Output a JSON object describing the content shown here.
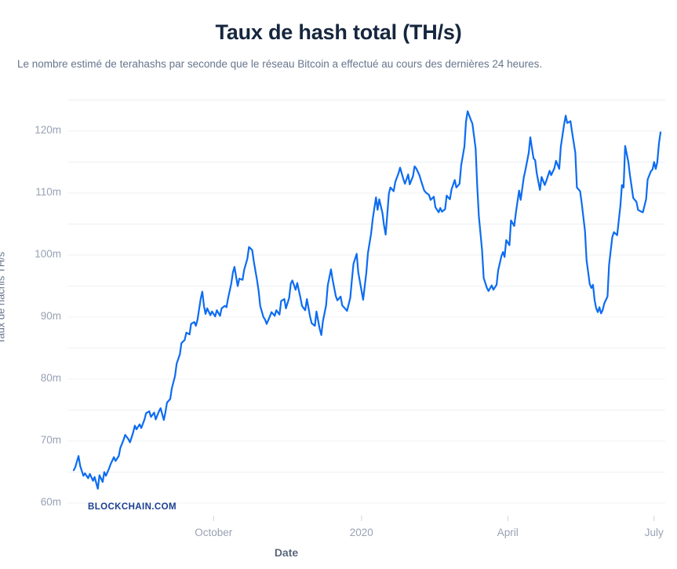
{
  "page": {
    "title": "Taux de hash total (TH/s)",
    "subtitle": "Le nombre estimé de terahashs par seconde que le réseau Bitcoin a effectué au cours des dernières 24 heures."
  },
  "watermark": "BLOCKCHAIN.COM",
  "colors": {
    "background": "#FFFFFF",
    "title": "#16263E",
    "subtitle": "#67758C",
    "line": "#0C6CF2",
    "grid": "#EDF0F3",
    "tick_label": "#98A2B3",
    "axis_title": "#67758C",
    "tick_mark": "#CFD5DD",
    "watermark": "#1B3E91"
  },
  "chart_data": {
    "type": "line",
    "title": "Taux de hash total (TH/s)",
    "xlabel": "Date",
    "ylabel": "Taux de hachis TH/s",
    "y_tick_suffix": "m",
    "grid": "horizontal",
    "legend": "none",
    "x_range": {
      "start_date": "2019-07-06",
      "end_date": "2020-07-06",
      "days": 365
    },
    "x_ticks": [
      {
        "label": "October",
        "day": 87
      },
      {
        "label": "2020",
        "day": 179
      },
      {
        "label": "April",
        "day": 270
      },
      {
        "label": "July",
        "day": 361
      }
    ],
    "y_ticks": [
      {
        "value": 60,
        "label": "60m"
      },
      {
        "value": 70,
        "label": "70m"
      },
      {
        "value": 80,
        "label": "80m"
      },
      {
        "value": 90,
        "label": "90m"
      },
      {
        "value": 100,
        "label": "100m"
      },
      {
        "value": 110,
        "label": "110m"
      },
      {
        "value": 120,
        "label": "120m"
      }
    ],
    "y_grid": {
      "min": 60,
      "max": 125,
      "step": 5
    },
    "ylim": [
      60,
      125
    ],
    "series": [
      {
        "name": "Taux de hash total (TH/s)",
        "color": "#0C6CF2",
        "x_unit": "days_since_start",
        "y_unit": "millions_of_TH_per_s",
        "points": [
          [
            0,
            65.3
          ],
          [
            1,
            65.8
          ],
          [
            3,
            67.6
          ],
          [
            4,
            66.0
          ],
          [
            6,
            64.4
          ],
          [
            7,
            64.8
          ],
          [
            9,
            64.0
          ],
          [
            10,
            64.7
          ],
          [
            12,
            63.6
          ],
          [
            13,
            64.2
          ],
          [
            15,
            62.3
          ],
          [
            16,
            64.5
          ],
          [
            18,
            63.4
          ],
          [
            19,
            65.0
          ],
          [
            20,
            64.4
          ],
          [
            22,
            65.6
          ],
          [
            23,
            66.3
          ],
          [
            25,
            67.4
          ],
          [
            26,
            66.8
          ],
          [
            28,
            67.6
          ],
          [
            29,
            68.9
          ],
          [
            31,
            70.2
          ],
          [
            32,
            71.0
          ],
          [
            34,
            70.3
          ],
          [
            35,
            69.8
          ],
          [
            37,
            71.4
          ],
          [
            38,
            72.5
          ],
          [
            39,
            71.9
          ],
          [
            41,
            72.7
          ],
          [
            42,
            72.1
          ],
          [
            44,
            73.5
          ],
          [
            45,
            74.5
          ],
          [
            47,
            74.8
          ],
          [
            48,
            73.9
          ],
          [
            50,
            74.6
          ],
          [
            51,
            73.5
          ],
          [
            53,
            74.8
          ],
          [
            54,
            75.3
          ],
          [
            56,
            73.4
          ],
          [
            57,
            74.6
          ],
          [
            58,
            76.2
          ],
          [
            60,
            76.8
          ],
          [
            61,
            78.5
          ],
          [
            63,
            80.5
          ],
          [
            64,
            82.5
          ],
          [
            66,
            84.0
          ],
          [
            67,
            85.8
          ],
          [
            69,
            86.3
          ],
          [
            70,
            87.5
          ],
          [
            72,
            87.2
          ],
          [
            73,
            88.9
          ],
          [
            75,
            89.2
          ],
          [
            76,
            88.6
          ],
          [
            77,
            89.6
          ],
          [
            79,
            93.0
          ],
          [
            80,
            94.1
          ],
          [
            81,
            91.8
          ],
          [
            82,
            90.5
          ],
          [
            83,
            91.4
          ],
          [
            85,
            90.3
          ],
          [
            86,
            90.9
          ],
          [
            88,
            90.1
          ],
          [
            89,
            91.1
          ],
          [
            91,
            90.2
          ],
          [
            92,
            91.4
          ],
          [
            94,
            91.8
          ],
          [
            95,
            91.6
          ],
          [
            96,
            93.0
          ],
          [
            98,
            95.4
          ],
          [
            99,
            97.2
          ],
          [
            100,
            98.1
          ],
          [
            102,
            95.0
          ],
          [
            103,
            96.2
          ],
          [
            105,
            96.0
          ],
          [
            106,
            97.6
          ],
          [
            108,
            99.4
          ],
          [
            109,
            101.3
          ],
          [
            111,
            100.8
          ],
          [
            112,
            99.0
          ],
          [
            114,
            96.0
          ],
          [
            115,
            94.2
          ],
          [
            116,
            91.8
          ],
          [
            118,
            90.0
          ],
          [
            119,
            89.6
          ],
          [
            120,
            88.9
          ],
          [
            122,
            90.1
          ],
          [
            123,
            90.8
          ],
          [
            125,
            90.2
          ],
          [
            126,
            91.1
          ],
          [
            128,
            90.4
          ],
          [
            129,
            92.6
          ],
          [
            131,
            92.9
          ],
          [
            132,
            91.4
          ],
          [
            134,
            93.1
          ],
          [
            135,
            95.4
          ],
          [
            136,
            95.9
          ],
          [
            138,
            94.4
          ],
          [
            139,
            95.5
          ],
          [
            141,
            93.1
          ],
          [
            142,
            91.8
          ],
          [
            144,
            91.1
          ],
          [
            145,
            92.9
          ],
          [
            147,
            90.1
          ],
          [
            148,
            89.0
          ],
          [
            150,
            88.6
          ],
          [
            151,
            90.9
          ],
          [
            153,
            88.1
          ],
          [
            154,
            87.1
          ],
          [
            155,
            89.3
          ],
          [
            157,
            91.9
          ],
          [
            158,
            95.1
          ],
          [
            160,
            97.7
          ],
          [
            161,
            96.1
          ],
          [
            163,
            93.4
          ],
          [
            164,
            92.7
          ],
          [
            166,
            93.3
          ],
          [
            167,
            91.9
          ],
          [
            169,
            91.3
          ],
          [
            170,
            91.0
          ],
          [
            172,
            93.1
          ],
          [
            173,
            95.9
          ],
          [
            174,
            98.6
          ],
          [
            176,
            100.2
          ],
          [
            177,
            97.2
          ],
          [
            179,
            94.3
          ],
          [
            180,
            92.8
          ],
          [
            182,
            97.2
          ],
          [
            183,
            100.3
          ],
          [
            185,
            103.5
          ],
          [
            186,
            105.9
          ],
          [
            188,
            109.3
          ],
          [
            189,
            107.3
          ],
          [
            190,
            109.0
          ],
          [
            192,
            106.8
          ],
          [
            193,
            104.8
          ],
          [
            194,
            103.3
          ],
          [
            195,
            106.4
          ],
          [
            196,
            109.9
          ],
          [
            197,
            110.9
          ],
          [
            199,
            110.3
          ],
          [
            200,
            111.8
          ],
          [
            202,
            113.2
          ],
          [
            203,
            114.1
          ],
          [
            205,
            112.3
          ],
          [
            206,
            111.5
          ],
          [
            208,
            113.0
          ],
          [
            209,
            111.4
          ],
          [
            211,
            112.7
          ],
          [
            212,
            114.3
          ],
          [
            213,
            114.0
          ],
          [
            215,
            112.9
          ],
          [
            216,
            112.0
          ],
          [
            218,
            110.4
          ],
          [
            219,
            110.1
          ],
          [
            221,
            109.7
          ],
          [
            222,
            108.9
          ],
          [
            224,
            109.4
          ],
          [
            225,
            107.7
          ],
          [
            227,
            106.9
          ],
          [
            228,
            107.6
          ],
          [
            229,
            107.0
          ],
          [
            231,
            107.4
          ],
          [
            232,
            109.6
          ],
          [
            234,
            109.0
          ],
          [
            235,
            110.6
          ],
          [
            237,
            112.1
          ],
          [
            238,
            110.9
          ],
          [
            240,
            111.5
          ],
          [
            241,
            114.5
          ],
          [
            243,
            117.5
          ],
          [
            244,
            121.5
          ],
          [
            245,
            123.2
          ],
          [
            247,
            121.8
          ],
          [
            248,
            121.2
          ],
          [
            250,
            117.2
          ],
          [
            251,
            111.0
          ],
          [
            252,
            106.3
          ],
          [
            254,
            100.8
          ],
          [
            255,
            96.3
          ],
          [
            257,
            94.7
          ],
          [
            258,
            94.2
          ],
          [
            260,
            95.1
          ],
          [
            261,
            94.4
          ],
          [
            263,
            95.2
          ],
          [
            264,
            97.5
          ],
          [
            266,
            99.8
          ],
          [
            267,
            100.5
          ],
          [
            268,
            99.7
          ],
          [
            269,
            102.4
          ],
          [
            271,
            101.6
          ],
          [
            272,
            105.6
          ],
          [
            274,
            104.7
          ],
          [
            275,
            106.8
          ],
          [
            277,
            110.4
          ],
          [
            278,
            108.9
          ],
          [
            280,
            112.6
          ],
          [
            281,
            113.8
          ],
          [
            283,
            116.5
          ],
          [
            284,
            119.0
          ],
          [
            286,
            115.6
          ],
          [
            287,
            115.3
          ],
          [
            288,
            113.2
          ],
          [
            290,
            110.5
          ],
          [
            291,
            112.6
          ],
          [
            293,
            111.3
          ],
          [
            294,
            112.0
          ],
          [
            296,
            113.6
          ],
          [
            297,
            112.9
          ],
          [
            299,
            114.0
          ],
          [
            300,
            115.2
          ],
          [
            302,
            113.9
          ],
          [
            303,
            117.5
          ],
          [
            305,
            121.0
          ],
          [
            306,
            122.5
          ],
          [
            307,
            121.3
          ],
          [
            309,
            121.6
          ],
          [
            310,
            119.8
          ],
          [
            312,
            116.5
          ],
          [
            313,
            110.9
          ],
          [
            315,
            110.3
          ],
          [
            316,
            108.3
          ],
          [
            318,
            103.9
          ],
          [
            319,
            99.2
          ],
          [
            321,
            95.3
          ],
          [
            322,
            94.7
          ],
          [
            323,
            95.2
          ],
          [
            324,
            92.7
          ],
          [
            325,
            91.4
          ],
          [
            326,
            90.8
          ],
          [
            327,
            91.6
          ],
          [
            328,
            90.6
          ],
          [
            329,
            91.1
          ],
          [
            330,
            92.2
          ],
          [
            332,
            93.3
          ],
          [
            333,
            98.4
          ],
          [
            335,
            102.9
          ],
          [
            336,
            103.7
          ],
          [
            338,
            103.2
          ],
          [
            339,
            105.5
          ],
          [
            340,
            107.9
          ],
          [
            341,
            111.3
          ],
          [
            342,
            110.9
          ],
          [
            343,
            117.6
          ],
          [
            345,
            115.0
          ],
          [
            346,
            112.8
          ],
          [
            347,
            111.1
          ],
          [
            348,
            109.2
          ],
          [
            350,
            108.6
          ],
          [
            351,
            107.3
          ],
          [
            353,
            107.0
          ],
          [
            354,
            106.9
          ],
          [
            356,
            109.0
          ],
          [
            357,
            112.2
          ],
          [
            359,
            113.5
          ],
          [
            360,
            113.8
          ],
          [
            361,
            115.0
          ],
          [
            362,
            113.9
          ],
          [
            363,
            115.0
          ],
          [
            364,
            118.0
          ],
          [
            365,
            119.8
          ]
        ]
      }
    ]
  }
}
